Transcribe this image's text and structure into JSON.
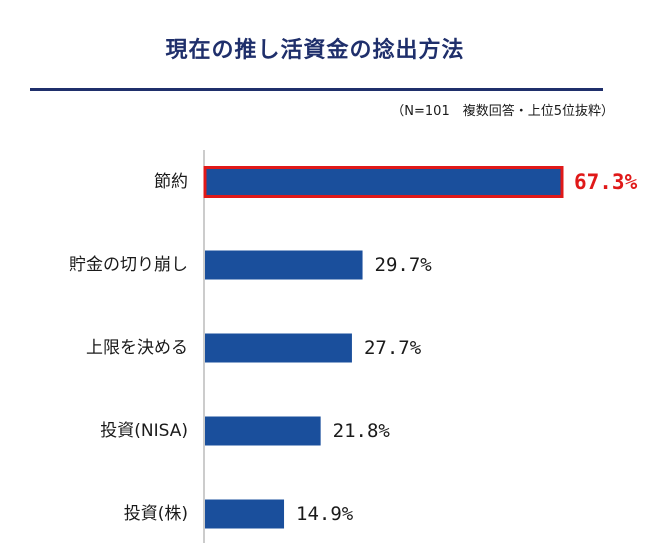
{
  "colors": {
    "title": "#1f2f6b",
    "bar": "#1a4f9c",
    "highlight": "#e01919",
    "axis": "#9a9a9a"
  },
  "chart_data": {
    "type": "bar",
    "orientation": "horizontal",
    "title": "現在の推し活資金の捻出方法",
    "note": "（N=101　複数回答・上位5位抜粋）",
    "categories": [
      "節約",
      "貯金の切り崩し",
      "上限を決める",
      "投資(NISA)",
      "投資(株)"
    ],
    "values": [
      67.3,
      29.7,
      27.7,
      21.8,
      14.9
    ],
    "value_labels": [
      "67.3%",
      "29.7%",
      "27.7%",
      "21.8%",
      "14.9%"
    ],
    "highlighted_index": 0,
    "xlim": [
      0,
      67.3
    ],
    "grid": false,
    "legend": "none"
  }
}
